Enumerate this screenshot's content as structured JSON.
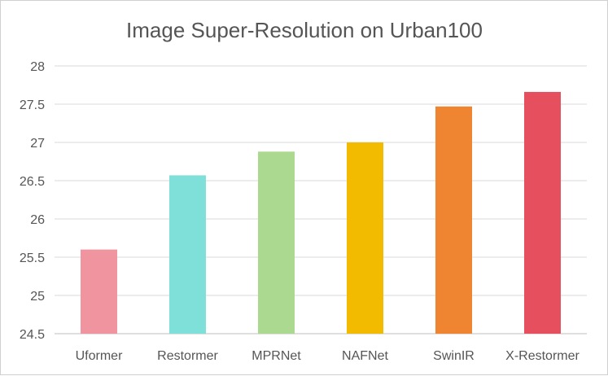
{
  "chart_data": {
    "type": "bar",
    "title": "Image Super-Resolution on Urban100",
    "xlabel": "",
    "ylabel": "",
    "categories": [
      "Uformer",
      "Restormer",
      "MPRNet",
      "NAFNet",
      "SwinIR",
      "X-Restormer"
    ],
    "values": [
      25.6,
      26.57,
      26.88,
      27.0,
      27.47,
      27.66
    ],
    "colors": [
      "#f0959f",
      "#7fe0da",
      "#aad98f",
      "#f2bb00",
      "#ef8530",
      "#e54f5e"
    ],
    "ylim": [
      24.5,
      28
    ],
    "yticks": [
      "24.5",
      "25",
      "25.5",
      "26",
      "26.5",
      "27",
      "27.5",
      "28"
    ],
    "grid": true,
    "legend": "none"
  }
}
